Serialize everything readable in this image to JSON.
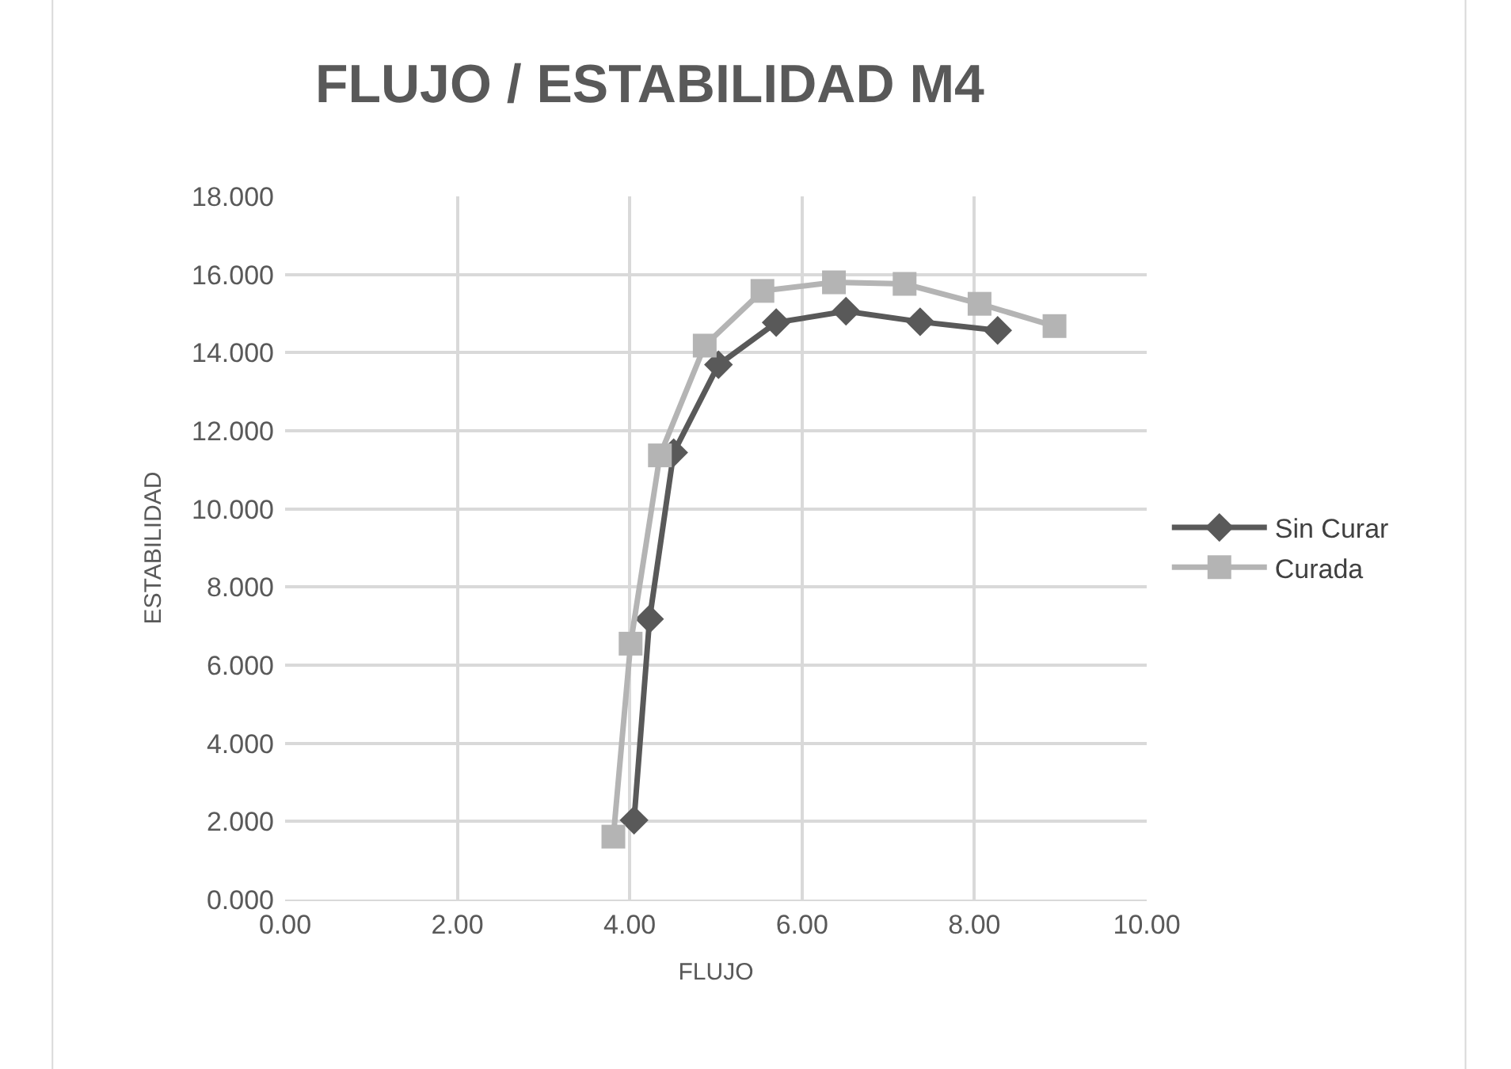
{
  "chart_data": {
    "type": "line",
    "title": "FLUJO / ESTABILIDAD M4",
    "xlabel": "FLUJO",
    "ylabel": "ESTABILIDAD",
    "series": [
      {
        "name": "Sin Curar",
        "color": "#595959",
        "marker": "diamond",
        "x": [
          4.05,
          4.23,
          4.51,
          5.03,
          5.7,
          6.51,
          7.37,
          8.27
        ],
        "values": [
          2.03,
          7.18,
          11.44,
          13.69,
          14.77,
          15.06,
          14.79,
          14.57
        ]
      },
      {
        "name": "Curada",
        "color": "#b4b4b4",
        "marker": "square",
        "x": [
          3.81,
          4.01,
          4.35,
          4.87,
          5.54,
          6.37,
          7.19,
          8.06,
          8.93
        ],
        "values": [
          1.61,
          6.55,
          11.37,
          14.18,
          15.58,
          15.8,
          15.76,
          15.25,
          14.68
        ]
      }
    ],
    "xlim": [
      0,
      10
    ],
    "xticks": [
      {
        "value": 0,
        "label": "0.00"
      },
      {
        "value": 2,
        "label": "2.00"
      },
      {
        "value": 4,
        "label": "4.00"
      },
      {
        "value": 6,
        "label": "6.00"
      },
      {
        "value": 8,
        "label": "8.00"
      },
      {
        "value": 10,
        "label": "10.00"
      }
    ],
    "ylim": [
      0,
      18
    ],
    "yticks": [
      {
        "value": 0,
        "label": "0.000"
      },
      {
        "value": 2,
        "label": "2.000"
      },
      {
        "value": 4,
        "label": "4.000"
      },
      {
        "value": 6,
        "label": "6.000"
      },
      {
        "value": 8,
        "label": "8.000"
      },
      {
        "value": 10,
        "label": "10.000"
      },
      {
        "value": 12,
        "label": "12.000"
      },
      {
        "value": 14,
        "label": "14.000"
      },
      {
        "value": 16,
        "label": "16.000"
      },
      {
        "value": 18,
        "label": "18.000"
      }
    ],
    "grid": true,
    "legend": "right",
    "line_style": "solid"
  }
}
